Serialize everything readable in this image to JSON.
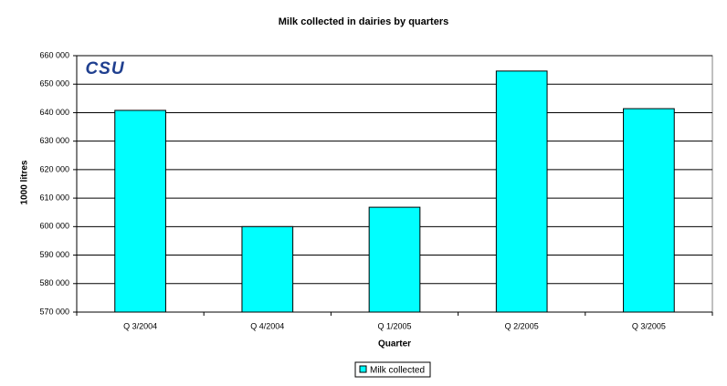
{
  "chart_data": {
    "type": "bar",
    "title": "Milk collected in dairies by quarters",
    "annotation": "CSU",
    "ylabel": "1000 litres",
    "xlabel": "Quarter",
    "categories": [
      "Q 3/2004",
      "Q 4/2004",
      "Q 1/2005",
      "Q 2/2005",
      "Q 3/2005"
    ],
    "series": [
      {
        "name": "Milk collected",
        "color": "#00ffff",
        "values": [
          640800,
          600000,
          606800,
          654600,
          641400
        ]
      }
    ],
    "ylim": [
      570000,
      660000
    ],
    "yticks": [
      {
        "value": 570000,
        "label": "570 000"
      },
      {
        "value": 580000,
        "label": "580 000"
      },
      {
        "value": 590000,
        "label": "590 000"
      },
      {
        "value": 600000,
        "label": "600 000"
      },
      {
        "value": 610000,
        "label": "610 000"
      },
      {
        "value": 620000,
        "label": "620 000"
      },
      {
        "value": 630000,
        "label": "630 000"
      },
      {
        "value": 640000,
        "label": "640 000"
      },
      {
        "value": 650000,
        "label": "650 000"
      },
      {
        "value": 660000,
        "label": "660 000"
      }
    ],
    "grid": true,
    "legend": "bottom"
  }
}
